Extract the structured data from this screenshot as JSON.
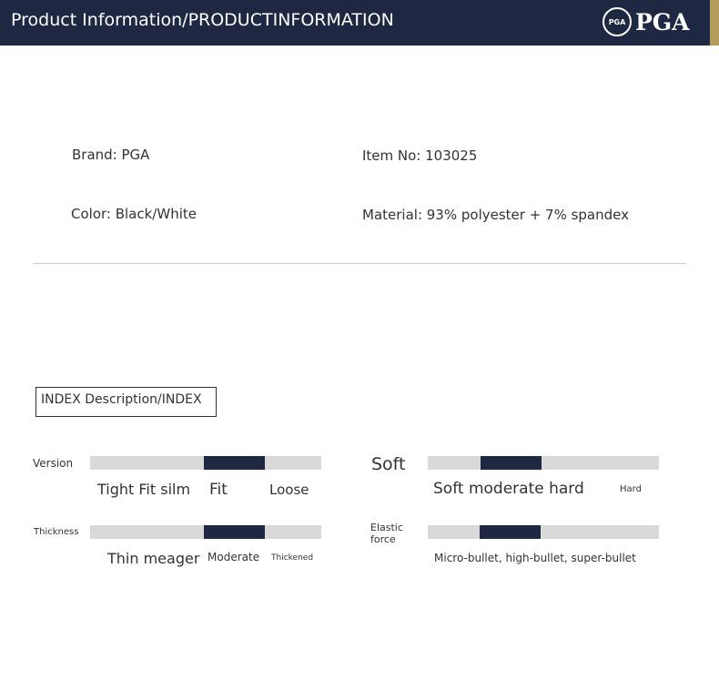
{
  "header": {
    "title": "Product Information/PRODUCTINFORMATION",
    "logo_text": "PGA",
    "seal_text": "PGA"
  },
  "info": {
    "brand": "Brand: PGA",
    "item_no": "Item No: 103025",
    "color": "Color: Black/White",
    "material": "Material: 93% polyester + 7% spandex"
  },
  "index": {
    "title": "INDEX Description/INDEX"
  },
  "indicators": [
    {
      "label": "Version",
      "options": [
        "Tight Fit silm",
        "Fit",
        "Loose"
      ],
      "selected": "Fit"
    },
    {
      "label": "Thickness",
      "options": [
        "Thin meager",
        "Moderate",
        "Thickened"
      ],
      "selected": "Moderate"
    },
    {
      "label": "Soft",
      "options": [
        "Soft moderate hard",
        "Hard"
      ],
      "selected": "moderate"
    },
    {
      "label": "Elastic force",
      "options": [
        "Micro-bullet, high-bullet, super-bullet"
      ],
      "selected": "high-bullet"
    }
  ],
  "colors": {
    "navy": "#1e2843",
    "gold": "#b59a5e",
    "bar": "#d9d9d9"
  }
}
